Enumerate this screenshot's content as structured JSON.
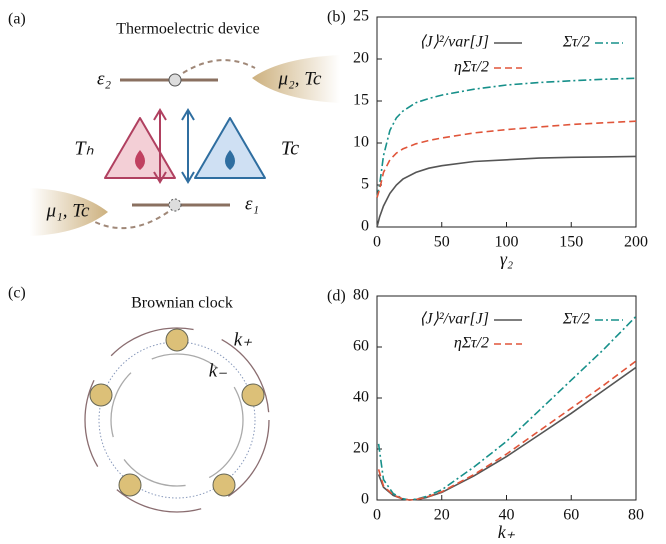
{
  "panels": {
    "a": {
      "label": "(a)",
      "title": "Thermoelectric device",
      "level_top": "ε₂",
      "level_bottom": "ε₁",
      "bath_right": "μ₂, Tc",
      "bath_left": "μ₁, Tc",
      "hot": "Tₕ",
      "cold": "Tc"
    },
    "c": {
      "label": "(c)",
      "title": "Brownian clock",
      "rate_plus": "k₊",
      "rate_minus": "k₋"
    }
  },
  "chart_data": [
    {
      "type": "line",
      "label": "(b)",
      "xlabel": "γ₂",
      "xlim": [
        0,
        200
      ],
      "ylim": [
        0,
        25
      ],
      "xticks": [
        0,
        50,
        100,
        150,
        200
      ],
      "yticks": [
        0,
        5,
        10,
        15,
        20,
        25
      ],
      "x": [
        0,
        2,
        5,
        10,
        15,
        20,
        30,
        40,
        50,
        75,
        100,
        125,
        150,
        175,
        200
      ],
      "series": [
        {
          "name": "⟨J⟩²/var[J]",
          "color": "#555555",
          "linestyle": "solid",
          "values": [
            0,
            1.2,
            2.5,
            4.0,
            5.0,
            5.7,
            6.5,
            7.0,
            7.3,
            7.8,
            8.0,
            8.2,
            8.3,
            8.35,
            8.4
          ]
        },
        {
          "name": "Στ/2",
          "color": "#17908a",
          "linestyle": "dashdot",
          "values": [
            3.5,
            5,
            8.5,
            11.5,
            13,
            13.8,
            14.8,
            15.3,
            15.7,
            16.4,
            16.9,
            17.2,
            17.4,
            17.6,
            17.7
          ]
        },
        {
          "name": "ηΣτ/2",
          "color": "#e0553a",
          "linestyle": "dashed",
          "values": [
            3.5,
            4.5,
            6.5,
            8,
            8.8,
            9.3,
            9.9,
            10.3,
            10.6,
            11.2,
            11.6,
            11.9,
            12.2,
            12.4,
            12.6
          ]
        }
      ]
    },
    {
      "type": "line",
      "label": "(d)",
      "xlabel": "k₊",
      "xlim": [
        0,
        80
      ],
      "ylim": [
        0,
        80
      ],
      "xticks": [
        0,
        20,
        40,
        60,
        80
      ],
      "yticks": [
        0,
        20,
        40,
        60,
        80
      ],
      "x": [
        0.5,
        2,
        5,
        8,
        10,
        12,
        15,
        20,
        30,
        40,
        50,
        60,
        70,
        80
      ],
      "series": [
        {
          "name": "⟨J⟩²/var[J]",
          "color": "#555555",
          "linestyle": "solid",
          "values": [
            10,
            5,
            1.8,
            0.4,
            0,
            0.2,
            0.9,
            3,
            9.5,
            17,
            25.5,
            34,
            43,
            52
          ]
        },
        {
          "name": "Στ/2",
          "color": "#17908a",
          "linestyle": "dashdot",
          "values": [
            22,
            8,
            2.5,
            0.5,
            0,
            0.3,
            1.3,
            4,
            13,
            23,
            35,
            47,
            59,
            72
          ]
        },
        {
          "name": "ηΣτ/2",
          "color": "#e0553a",
          "linestyle": "dashed",
          "values": [
            12,
            5.5,
            2,
            0.4,
            0,
            0.2,
            1,
            3.2,
            10,
            18,
            27,
            36,
            45,
            54.5
          ]
        }
      ]
    }
  ]
}
